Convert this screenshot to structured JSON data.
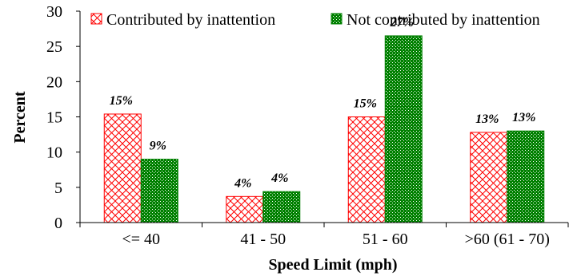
{
  "chart_data": {
    "type": "bar",
    "categories": [
      "<= 40",
      "41 - 50",
      "51 - 60",
      ">60 (61 - 70)"
    ],
    "series": [
      {
        "name": "Contributed by inattention",
        "values": [
          15.4,
          3.7,
          15.0,
          12.8
        ],
        "labels": [
          "15%",
          "4%",
          "15%",
          "13%"
        ],
        "color": "#ff0000",
        "fill": "hatch-red"
      },
      {
        "name": "Not contributed by inattention",
        "values": [
          9.0,
          4.4,
          26.5,
          13.0
        ],
        "labels": [
          "9%",
          "4%",
          "27%",
          "13%"
        ],
        "color": "#008000",
        "fill": "dotted-green"
      }
    ],
    "xlabel": "Speed Limit (mph)",
    "ylabel": "Percent",
    "ylim": [
      0,
      30
    ],
    "yticks": [
      "0",
      "5",
      "10",
      "15",
      "20",
      "25",
      "30"
    ],
    "grid": false,
    "legend": "top"
  }
}
